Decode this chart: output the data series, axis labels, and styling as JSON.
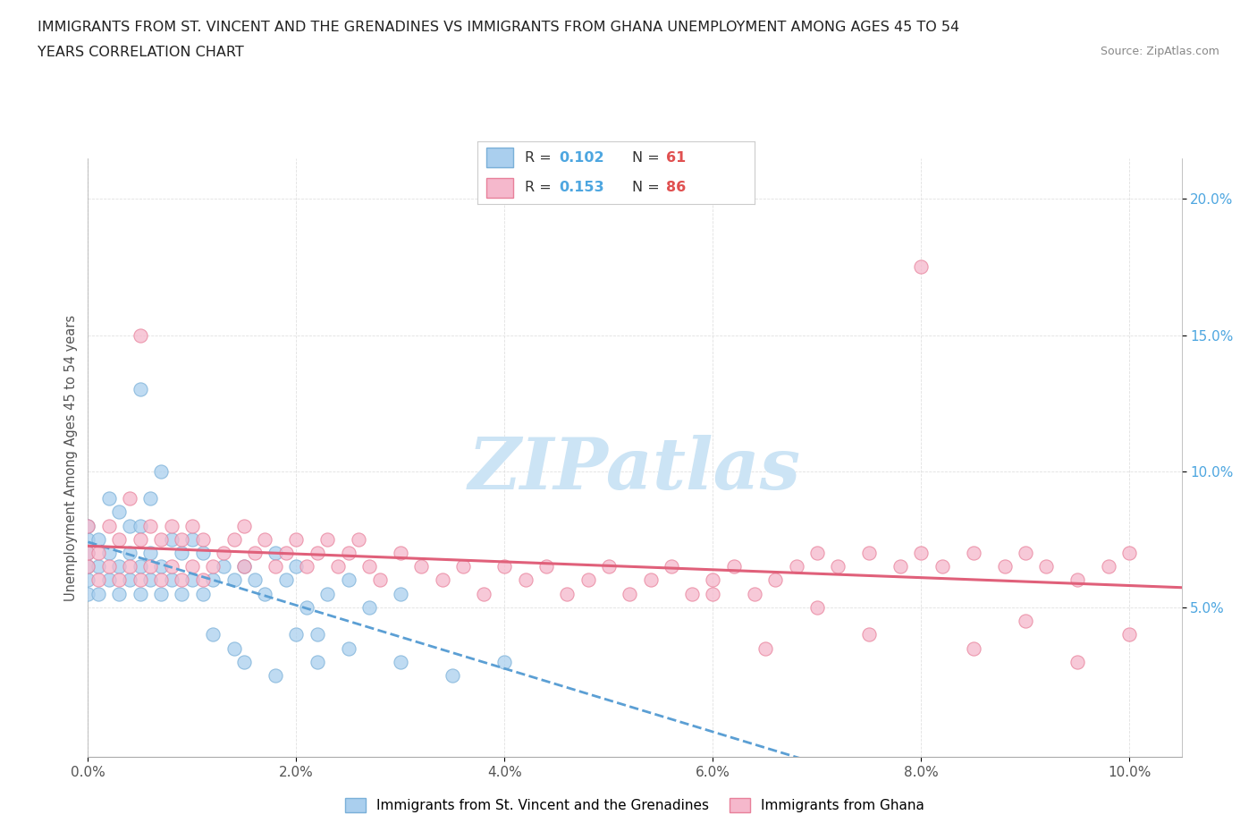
{
  "title_line1": "IMMIGRANTS FROM ST. VINCENT AND THE GRENADINES VS IMMIGRANTS FROM GHANA UNEMPLOYMENT AMONG AGES 45 TO 54",
  "title_line2": "YEARS CORRELATION CHART",
  "source": "Source: ZipAtlas.com",
  "ylabel": "Unemployment Among Ages 45 to 54 years",
  "xlim": [
    0.0,
    0.105
  ],
  "ylim": [
    -0.005,
    0.215
  ],
  "xticks": [
    0.0,
    0.02,
    0.04,
    0.06,
    0.08,
    0.1
  ],
  "yticks": [
    0.05,
    0.1,
    0.15,
    0.2
  ],
  "xtick_labels": [
    "0.0%",
    "2.0%",
    "4.0%",
    "6.0%",
    "8.0%",
    "10.0%"
  ],
  "ytick_labels": [
    "5.0%",
    "10.0%",
    "15.0%",
    "20.0%"
  ],
  "blue_color": "#aacfee",
  "pink_color": "#f5b8cc",
  "blue_edge_color": "#7ab0d8",
  "pink_edge_color": "#e8809a",
  "blue_line_color": "#5b9fd4",
  "pink_line_color": "#e0607a",
  "legend_color_r": "#4da6e0",
  "legend_color_n": "#e05050",
  "watermark_color": "#cce4f5",
  "blue_scatter_x": [
    0.0,
    0.0,
    0.0,
    0.0,
    0.0,
    0.0,
    0.001,
    0.001,
    0.001,
    0.002,
    0.002,
    0.002,
    0.003,
    0.003,
    0.003,
    0.004,
    0.004,
    0.004,
    0.005,
    0.005,
    0.005,
    0.005,
    0.006,
    0.006,
    0.006,
    0.007,
    0.007,
    0.007,
    0.008,
    0.008,
    0.009,
    0.009,
    0.01,
    0.01,
    0.011,
    0.011,
    0.012,
    0.013,
    0.014,
    0.015,
    0.016,
    0.017,
    0.018,
    0.019,
    0.02,
    0.021,
    0.022,
    0.023,
    0.025,
    0.027,
    0.03,
    0.012,
    0.014,
    0.015,
    0.018,
    0.02,
    0.022,
    0.025,
    0.03,
    0.035,
    0.04
  ],
  "blue_scatter_y": [
    0.06,
    0.065,
    0.055,
    0.07,
    0.075,
    0.08,
    0.055,
    0.065,
    0.075,
    0.06,
    0.07,
    0.09,
    0.055,
    0.065,
    0.085,
    0.06,
    0.07,
    0.08,
    0.055,
    0.065,
    0.08,
    0.13,
    0.06,
    0.07,
    0.09,
    0.055,
    0.065,
    0.1,
    0.06,
    0.075,
    0.055,
    0.07,
    0.06,
    0.075,
    0.055,
    0.07,
    0.06,
    0.065,
    0.06,
    0.065,
    0.06,
    0.055,
    0.07,
    0.06,
    0.065,
    0.05,
    0.04,
    0.055,
    0.06,
    0.05,
    0.055,
    0.04,
    0.035,
    0.03,
    0.025,
    0.04,
    0.03,
    0.035,
    0.03,
    0.025,
    0.03
  ],
  "pink_scatter_x": [
    0.0,
    0.0,
    0.0,
    0.001,
    0.001,
    0.002,
    0.002,
    0.003,
    0.003,
    0.004,
    0.004,
    0.005,
    0.005,
    0.005,
    0.006,
    0.006,
    0.007,
    0.007,
    0.008,
    0.008,
    0.009,
    0.009,
    0.01,
    0.01,
    0.011,
    0.011,
    0.012,
    0.013,
    0.014,
    0.015,
    0.015,
    0.016,
    0.017,
    0.018,
    0.019,
    0.02,
    0.021,
    0.022,
    0.023,
    0.024,
    0.025,
    0.026,
    0.027,
    0.028,
    0.03,
    0.032,
    0.034,
    0.036,
    0.038,
    0.04,
    0.042,
    0.044,
    0.046,
    0.048,
    0.05,
    0.052,
    0.054,
    0.056,
    0.058,
    0.06,
    0.062,
    0.064,
    0.066,
    0.068,
    0.07,
    0.072,
    0.075,
    0.078,
    0.08,
    0.082,
    0.085,
    0.088,
    0.09,
    0.092,
    0.095,
    0.098,
    0.1,
    0.065,
    0.075,
    0.085,
    0.09,
    0.095,
    0.1,
    0.06,
    0.07,
    0.08
  ],
  "pink_scatter_y": [
    0.065,
    0.07,
    0.08,
    0.06,
    0.07,
    0.065,
    0.08,
    0.06,
    0.075,
    0.065,
    0.09,
    0.06,
    0.075,
    0.15,
    0.065,
    0.08,
    0.06,
    0.075,
    0.065,
    0.08,
    0.06,
    0.075,
    0.065,
    0.08,
    0.06,
    0.075,
    0.065,
    0.07,
    0.075,
    0.065,
    0.08,
    0.07,
    0.075,
    0.065,
    0.07,
    0.075,
    0.065,
    0.07,
    0.075,
    0.065,
    0.07,
    0.075,
    0.065,
    0.06,
    0.07,
    0.065,
    0.06,
    0.065,
    0.055,
    0.065,
    0.06,
    0.065,
    0.055,
    0.06,
    0.065,
    0.055,
    0.06,
    0.065,
    0.055,
    0.06,
    0.065,
    0.055,
    0.06,
    0.065,
    0.07,
    0.065,
    0.07,
    0.065,
    0.07,
    0.065,
    0.07,
    0.065,
    0.07,
    0.065,
    0.06,
    0.065,
    0.07,
    0.035,
    0.04,
    0.035,
    0.045,
    0.03,
    0.04,
    0.055,
    0.05,
    0.175
  ]
}
